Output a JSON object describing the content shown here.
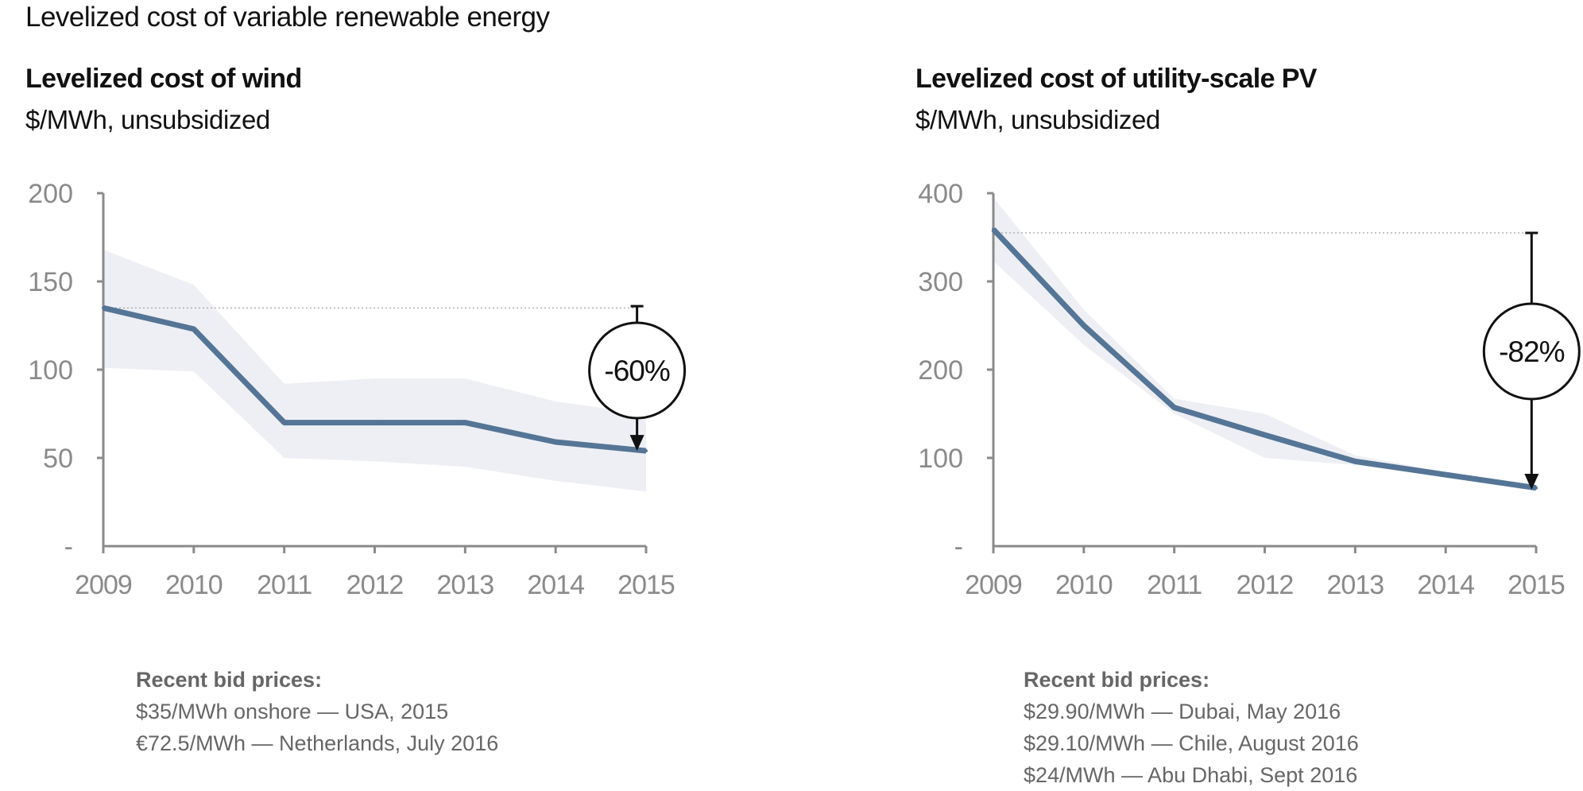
{
  "page_title": "Levelized cost of variable renewable energy",
  "colors": {
    "line": "#557596",
    "band": "#eeeff4",
    "axis": "#8a8a8a",
    "tick_text": "#8a8a8a",
    "reference": "#999999",
    "annotation": "#111111"
  },
  "panels": [
    {
      "title": "Levelized cost of wind",
      "subtitle": "$/MWh, unsubsidized",
      "bids_heading": "Recent bid prices:",
      "bids": [
        "$35/MWh onshore — USA, 2015",
        "€72.5/MWh — Netherlands, July 2016"
      ]
    },
    {
      "title": "Levelized cost of utility-scale PV",
      "subtitle": "$/MWh, unsubsidized",
      "bids_heading": "Recent bid prices:",
      "bids": [
        "$29.90/MWh — Dubai, May 2016",
        "$29.10/MWh — Chile, August 2016",
        "$24/MWh — Abu Dhabi, Sept 2016"
      ]
    }
  ],
  "chart_data": [
    {
      "type": "line",
      "title": "Levelized cost of wind",
      "ylabel": "$/MWh, unsubsidized",
      "x": [
        2009,
        2010,
        2011,
        2012,
        2013,
        2014,
        2015
      ],
      "x_tick_labels": [
        "2009",
        "2010",
        "2011",
        "2012",
        "2013",
        "2014",
        "2015"
      ],
      "y_ticks": [
        0,
        50,
        100,
        150,
        200
      ],
      "y_tick_labels": [
        "-",
        "50",
        "100",
        "150",
        "200"
      ],
      "ylim": [
        0,
        200
      ],
      "series": [
        {
          "values": [
            135,
            123,
            70,
            70,
            70,
            59,
            54
          ]
        }
      ],
      "band": {
        "upper": [
          168,
          148,
          92,
          95,
          95,
          82,
          75
        ],
        "lower": [
          101,
          99,
          50,
          48,
          45,
          37,
          31
        ]
      },
      "reference_value": 135,
      "annotation": {
        "text": "-60%",
        "from": 136,
        "to": 54,
        "x": 2014.9
      },
      "grid": false
    },
    {
      "type": "line",
      "title": "Levelized cost of utility-scale PV",
      "ylabel": "$/MWh, unsubsidized",
      "x": [
        2009,
        2010,
        2011,
        2012,
        2013,
        2014,
        2015
      ],
      "x_tick_labels": [
        "2009",
        "2010",
        "2011",
        "2012",
        "2013",
        "2014",
        "2015"
      ],
      "y_ticks": [
        0,
        100,
        200,
        300,
        400
      ],
      "y_tick_labels": [
        "-",
        "100",
        "200",
        "300",
        "400"
      ],
      "ylim": [
        0,
        400
      ],
      "series": [
        {
          "values": [
            359,
            250,
            157,
            126,
            96,
            81,
            66
          ]
        }
      ],
      "band": {
        "upper": [
          395,
          268,
          167,
          150,
          103,
          84,
          68
        ],
        "lower": [
          323,
          228,
          150,
          100,
          92,
          78,
          62
        ]
      },
      "reference_value": 355,
      "annotation": {
        "text": "-82%",
        "from": 355,
        "to": 64,
        "x": 2014.95
      },
      "grid": false
    }
  ]
}
